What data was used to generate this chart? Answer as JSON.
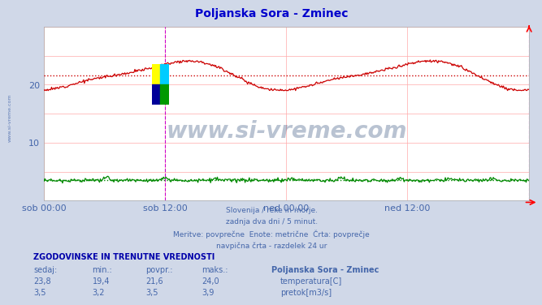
{
  "title": "Poljanska Sora - Zminec",
  "title_color": "#0000cc",
  "fig_bg_color": "#d0d8e8",
  "plot_bg_color": "#ffffff",
  "x_ticks_labels": [
    "sob 00:00",
    "sob 12:00",
    "ned 00:00",
    "ned 12:00"
  ],
  "ylim": [
    0,
    30
  ],
  "yticks": [
    10,
    20
  ],
  "temp_color": "#cc0000",
  "flow_color": "#008800",
  "avg_temp": 21.6,
  "avg_flow": 3.5,
  "vline_color": "#cc00cc",
  "grid_color": "#ffaaaa",
  "watermark_text": "www.si-vreme.com",
  "watermark_color": "#1a3a6a",
  "watermark_alpha": 0.3,
  "subtitle_lines": [
    "Slovenija / reke in morje.",
    "zadnja dva dni / 5 minut.",
    "Meritve: povprečne  Enote: metrične  Črta: povprečje",
    "navpična črta - razdelek 24 ur"
  ],
  "subtitle_color": "#4466aa",
  "table_header": "ZGODOVINSKE IN TRENUTNE VREDNOSTI",
  "table_header_color": "#0000aa",
  "col_headers": [
    "sedaj:",
    "min.:",
    "povpr.:",
    "maks.:",
    "Poljanska Sora - Zminec"
  ],
  "row1_vals": [
    "23,8",
    "19,4",
    "21,6",
    "24,0"
  ],
  "row1_label": "temperatura[C]",
  "row1_color": "#cc0000",
  "row2_vals": [
    "3,5",
    "3,2",
    "3,5",
    "3,9"
  ],
  "row2_label": "pretok[m3/s]",
  "row2_color": "#008800",
  "data_color": "#4466aa",
  "left_label": "www.si-vreme.com"
}
